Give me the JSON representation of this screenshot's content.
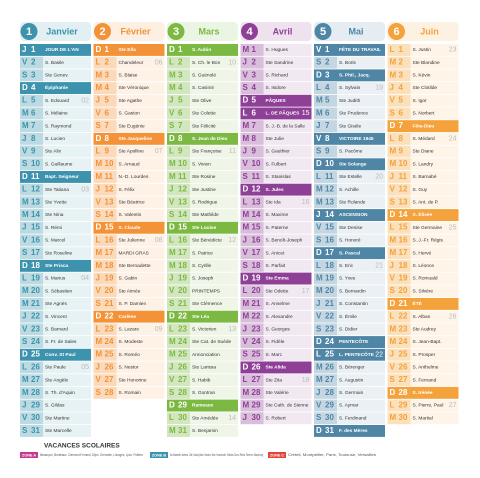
{
  "months": [
    {
      "number": 1,
      "name": "Janvier",
      "color": "#3d93ad",
      "days": [
        {
          "d": "J",
          "n": 1,
          "s": "JOUR DE L'AN",
          "h": true
        },
        {
          "d": "V",
          "n": 2,
          "s": "S. Basile"
        },
        {
          "d": "S",
          "n": 3,
          "s": "Ste Genev."
        },
        {
          "d": "D",
          "n": 4,
          "s": "Épiphanie",
          "h": true
        },
        {
          "d": "L",
          "n": 5,
          "s": "S. Edouard",
          "w": "02"
        },
        {
          "d": "M",
          "n": 6,
          "s": "S. Mélaine"
        },
        {
          "d": "M",
          "n": 7,
          "s": "S. Raymond"
        },
        {
          "d": "J",
          "n": 8,
          "s": "S. Lucien"
        },
        {
          "d": "V",
          "n": 9,
          "s": "Ste Alix"
        },
        {
          "d": "S",
          "n": 10,
          "s": "S. Guillaume"
        },
        {
          "d": "D",
          "n": 11,
          "s": "Bapt. Seigneur",
          "h": true
        },
        {
          "d": "L",
          "n": 12,
          "s": "Ste Tatiana",
          "w": "03"
        },
        {
          "d": "M",
          "n": 13,
          "s": "Ste Yvette"
        },
        {
          "d": "M",
          "n": 14,
          "s": "Ste Nina"
        },
        {
          "d": "J",
          "n": 15,
          "s": "S. Rémi"
        },
        {
          "d": "V",
          "n": 16,
          "s": "S. Marcel"
        },
        {
          "d": "S",
          "n": 17,
          "s": "Ste Roseline"
        },
        {
          "d": "D",
          "n": 18,
          "s": "Ste Prisca",
          "h": true
        },
        {
          "d": "L",
          "n": 19,
          "s": "S. Marius",
          "w": "04"
        },
        {
          "d": "M",
          "n": 20,
          "s": "S. Sébastien"
        },
        {
          "d": "M",
          "n": 21,
          "s": "Ste Agnès"
        },
        {
          "d": "J",
          "n": 22,
          "s": "S. Vincent"
        },
        {
          "d": "V",
          "n": 23,
          "s": "S. Barnard"
        },
        {
          "d": "S",
          "n": 24,
          "s": "S. Fr. de Sales"
        },
        {
          "d": "D",
          "n": 25,
          "s": "Conv. St Paul",
          "h": true
        },
        {
          "d": "L",
          "n": 26,
          "s": "Ste Paule",
          "w": "05"
        },
        {
          "d": "M",
          "n": 27,
          "s": "Ste Angèle"
        },
        {
          "d": "M",
          "n": 28,
          "s": "S. Th. d'Aquin"
        },
        {
          "d": "J",
          "n": 29,
          "s": "S. Gildas"
        },
        {
          "d": "V",
          "n": 30,
          "s": "Ste Martine"
        },
        {
          "d": "S",
          "n": 31,
          "s": "Ste Marcelle"
        }
      ]
    },
    {
      "number": 2,
      "name": "Février",
      "color": "#f39237",
      "days": [
        {
          "d": "D",
          "n": 1,
          "s": "Ste Ella",
          "h": true
        },
        {
          "d": "L",
          "n": 2,
          "s": "Chandeleur",
          "w": "06"
        },
        {
          "d": "M",
          "n": 3,
          "s": "S. Blaise"
        },
        {
          "d": "M",
          "n": 4,
          "s": "Ste Véronique"
        },
        {
          "d": "J",
          "n": 5,
          "s": "Ste Agathe"
        },
        {
          "d": "V",
          "n": 6,
          "s": "S. Gaston"
        },
        {
          "d": "S",
          "n": 7,
          "s": "Ste Eugénie"
        },
        {
          "d": "D",
          "n": 8,
          "s": "Ste Jacqueline",
          "h": true
        },
        {
          "d": "L",
          "n": 9,
          "s": "Ste Apolline",
          "w": "07"
        },
        {
          "d": "M",
          "n": 10,
          "s": "S. Arnaud"
        },
        {
          "d": "M",
          "n": 11,
          "s": "N.-D. Lourdes"
        },
        {
          "d": "J",
          "n": 12,
          "s": "S. Félix"
        },
        {
          "d": "V",
          "n": 13,
          "s": "Ste Béatrice"
        },
        {
          "d": "S",
          "n": 14,
          "s": "S. Valentin"
        },
        {
          "d": "D",
          "n": 15,
          "s": "S. Claude",
          "h": true
        },
        {
          "d": "L",
          "n": 16,
          "s": "Ste Julienne",
          "w": "08"
        },
        {
          "d": "M",
          "n": 17,
          "s": "MARDI GRAS"
        },
        {
          "d": "M",
          "n": 18,
          "s": "Ste Bernadette"
        },
        {
          "d": "J",
          "n": 19,
          "s": "S. Gabin"
        },
        {
          "d": "V",
          "n": 20,
          "s": "Ste Aimée"
        },
        {
          "d": "S",
          "n": 21,
          "s": "S. P. Damien"
        },
        {
          "d": "D",
          "n": 22,
          "s": "Carême",
          "h": true
        },
        {
          "d": "L",
          "n": 23,
          "s": "S. Lazare",
          "w": "09"
        },
        {
          "d": "M",
          "n": 24,
          "s": "S. Modeste"
        },
        {
          "d": "M",
          "n": 25,
          "s": "S. Roméo"
        },
        {
          "d": "J",
          "n": 26,
          "s": "S. Nestor"
        },
        {
          "d": "V",
          "n": 27,
          "s": "Ste Honorine"
        },
        {
          "d": "S",
          "n": 28,
          "s": "S. Romain"
        }
      ]
    },
    {
      "number": 3,
      "name": "Mars",
      "color": "#7cb942",
      "days": [
        {
          "d": "D",
          "n": 1,
          "s": "S. Aubin",
          "h": true
        },
        {
          "d": "L",
          "n": 2,
          "s": "S. Ch. le Bon",
          "w": "10"
        },
        {
          "d": "M",
          "n": 3,
          "s": "S. Guénolé"
        },
        {
          "d": "M",
          "n": 4,
          "s": "S. Casimir"
        },
        {
          "d": "J",
          "n": 5,
          "s": "Ste Olive"
        },
        {
          "d": "V",
          "n": 6,
          "s": "Ste Colette"
        },
        {
          "d": "S",
          "n": 7,
          "s": "Ste Félicité"
        },
        {
          "d": "D",
          "n": 8,
          "s": "S. Jean de Dieu",
          "h": true
        },
        {
          "d": "L",
          "n": 9,
          "s": "Ste Françoise",
          "w": "11"
        },
        {
          "d": "M",
          "n": 10,
          "s": "S. Vivien"
        },
        {
          "d": "M",
          "n": 11,
          "s": "Ste Rosine"
        },
        {
          "d": "J",
          "n": 12,
          "s": "Ste Justine"
        },
        {
          "d": "V",
          "n": 13,
          "s": "S. Rodrigue"
        },
        {
          "d": "S",
          "n": 14,
          "s": "Ste Mathilde"
        },
        {
          "d": "D",
          "n": 15,
          "s": "Ste Louise",
          "h": true
        },
        {
          "d": "L",
          "n": 16,
          "s": "Ste Bénédicte",
          "w": "12"
        },
        {
          "d": "M",
          "n": 17,
          "s": "S. Patrice"
        },
        {
          "d": "M",
          "n": 18,
          "s": "S. Cyrille"
        },
        {
          "d": "J",
          "n": 19,
          "s": "S. Joseph"
        },
        {
          "d": "V",
          "n": 20,
          "s": "PRINTEMPS"
        },
        {
          "d": "S",
          "n": 21,
          "s": "Ste Clémence"
        },
        {
          "d": "D",
          "n": 22,
          "s": "Ste Léa",
          "h": true
        },
        {
          "d": "L",
          "n": 23,
          "s": "S. Victorien",
          "w": "13"
        },
        {
          "d": "M",
          "n": 24,
          "s": "Ste Cat. de Suède"
        },
        {
          "d": "M",
          "n": 25,
          "s": "Annonciation"
        },
        {
          "d": "J",
          "n": 26,
          "s": "Ste Larissa"
        },
        {
          "d": "V",
          "n": 27,
          "s": "S. Habib"
        },
        {
          "d": "S",
          "n": 28,
          "s": "S. Gontran"
        },
        {
          "d": "D",
          "n": 29,
          "s": "Rameaux",
          "h": true
        },
        {
          "d": "L",
          "n": 30,
          "s": "Ste Amédée",
          "w": "14"
        },
        {
          "d": "M",
          "n": 31,
          "s": "S. Benjamin"
        }
      ]
    },
    {
      "number": 4,
      "name": "Avril",
      "color": "#8e3f96",
      "days": [
        {
          "d": "M",
          "n": 1,
          "s": "S. Hugues"
        },
        {
          "d": "J",
          "n": 2,
          "s": "Ste Sandrine"
        },
        {
          "d": "V",
          "n": 3,
          "s": "S. Richard"
        },
        {
          "d": "S",
          "n": 4,
          "s": "S. Isidore"
        },
        {
          "d": "D",
          "n": 5,
          "s": "PÂQUES",
          "h": true
        },
        {
          "d": "L",
          "n": 6,
          "s": "L. DE PÂQUES",
          "h": true,
          "w": "15"
        },
        {
          "d": "M",
          "n": 7,
          "s": "S. J.-B. de la Salle"
        },
        {
          "d": "M",
          "n": 8,
          "s": "Ste Julie"
        },
        {
          "d": "J",
          "n": 9,
          "s": "S. Gauthier"
        },
        {
          "d": "V",
          "n": 10,
          "s": "S. Fulbert"
        },
        {
          "d": "S",
          "n": 11,
          "s": "S. Stanislas"
        },
        {
          "d": "D",
          "n": 12,
          "s": "S. Jules",
          "h": true
        },
        {
          "d": "L",
          "n": 13,
          "s": "Ste Ida",
          "w": "16"
        },
        {
          "d": "M",
          "n": 14,
          "s": "S. Maxime"
        },
        {
          "d": "M",
          "n": 15,
          "s": "S. Paterne"
        },
        {
          "d": "J",
          "n": 16,
          "s": "S. Benoît-Joseph"
        },
        {
          "d": "V",
          "n": 17,
          "s": "S. Anicet"
        },
        {
          "d": "S",
          "n": 18,
          "s": "S. Parfait"
        },
        {
          "d": "D",
          "n": 19,
          "s": "Ste Emma",
          "h": true
        },
        {
          "d": "L",
          "n": 20,
          "s": "Ste Odette",
          "w": "17"
        },
        {
          "d": "M",
          "n": 21,
          "s": "S. Anselme"
        },
        {
          "d": "M",
          "n": 22,
          "s": "S. Alexandre"
        },
        {
          "d": "J",
          "n": 23,
          "s": "S. Georges"
        },
        {
          "d": "V",
          "n": 24,
          "s": "S. Fidèle"
        },
        {
          "d": "S",
          "n": 25,
          "s": "S. Marc"
        },
        {
          "d": "D",
          "n": 26,
          "s": "Ste Alida",
          "h": true
        },
        {
          "d": "L",
          "n": 27,
          "s": "Ste Zita",
          "w": "18"
        },
        {
          "d": "M",
          "n": 28,
          "s": "Ste Valérie"
        },
        {
          "d": "M",
          "n": 29,
          "s": "Ste Cath. de Sienne"
        },
        {
          "d": "J",
          "n": 30,
          "s": "S. Robert"
        }
      ]
    },
    {
      "number": 5,
      "name": "Mai",
      "color": "#4f86a6",
      "days": [
        {
          "d": "V",
          "n": 1,
          "s": "FÊTE DU TRAVAIL",
          "h": true
        },
        {
          "d": "S",
          "n": 2,
          "s": "S. Boris"
        },
        {
          "d": "D",
          "n": 3,
          "s": "S. Phil., Jacq.",
          "h": true
        },
        {
          "d": "L",
          "n": 4,
          "s": "S. Sylvain",
          "w": "19"
        },
        {
          "d": "M",
          "n": 5,
          "s": "Ste Judith"
        },
        {
          "d": "M",
          "n": 6,
          "s": "Ste Prudence"
        },
        {
          "d": "J",
          "n": 7,
          "s": "Ste Gisèle"
        },
        {
          "d": "V",
          "n": 8,
          "s": "VICTOIRE 1945",
          "h": true
        },
        {
          "d": "S",
          "n": 9,
          "s": "S. Pacôme"
        },
        {
          "d": "D",
          "n": 10,
          "s": "Ste Solange",
          "h": true
        },
        {
          "d": "L",
          "n": 11,
          "s": "Ste Estelle",
          "w": "20"
        },
        {
          "d": "M",
          "n": 12,
          "s": "S. Achille"
        },
        {
          "d": "M",
          "n": 13,
          "s": "Ste Rolande"
        },
        {
          "d": "J",
          "n": 14,
          "s": "ASCENSION",
          "h": true
        },
        {
          "d": "V",
          "n": 15,
          "s": "Ste Denise"
        },
        {
          "d": "S",
          "n": 16,
          "s": "S. Honoré"
        },
        {
          "d": "D",
          "n": 17,
          "s": "S. Pascal",
          "h": true
        },
        {
          "d": "L",
          "n": 18,
          "s": "S. Eric",
          "w": "21"
        },
        {
          "d": "M",
          "n": 19,
          "s": "S. Yves"
        },
        {
          "d": "M",
          "n": 20,
          "s": "S. Bernardin"
        },
        {
          "d": "J",
          "n": 21,
          "s": "S. Constantin"
        },
        {
          "d": "V",
          "n": 22,
          "s": "S. Émile"
        },
        {
          "d": "S",
          "n": 23,
          "s": "S. Didier"
        },
        {
          "d": "D",
          "n": 24,
          "s": "PENTECÔTE",
          "h": true
        },
        {
          "d": "L",
          "n": 25,
          "s": "L. PENTECÔTE",
          "h": true,
          "w": "22"
        },
        {
          "d": "M",
          "n": 26,
          "s": "S. Bérenger"
        },
        {
          "d": "M",
          "n": 27,
          "s": "S. Augustin"
        },
        {
          "d": "J",
          "n": 28,
          "s": "S. Germain"
        },
        {
          "d": "V",
          "n": 29,
          "s": "S. Aymar"
        },
        {
          "d": "S",
          "n": 30,
          "s": "S. Ferdinand"
        },
        {
          "d": "D",
          "n": 31,
          "s": "F. des Mères",
          "h": true
        }
      ]
    },
    {
      "number": 6,
      "name": "Juin",
      "color": "#f4a23c",
      "days": [
        {
          "d": "L",
          "n": 1,
          "s": "S. Justin",
          "w": "23"
        },
        {
          "d": "M",
          "n": 2,
          "s": "Ste Blandine"
        },
        {
          "d": "M",
          "n": 3,
          "s": "S. Kévin"
        },
        {
          "d": "J",
          "n": 4,
          "s": "Ste Clotilde"
        },
        {
          "d": "V",
          "n": 5,
          "s": "S. Igor"
        },
        {
          "d": "S",
          "n": 6,
          "s": "S. Norbert"
        },
        {
          "d": "D",
          "n": 7,
          "s": "Fête-Dieu",
          "h": true
        },
        {
          "d": "L",
          "n": 8,
          "s": "S. Médard",
          "w": "24"
        },
        {
          "d": "M",
          "n": 9,
          "s": "Ste Diane"
        },
        {
          "d": "M",
          "n": 10,
          "s": "S. Landry"
        },
        {
          "d": "J",
          "n": 11,
          "s": "S. Barnabé"
        },
        {
          "d": "V",
          "n": 12,
          "s": "S. Guy"
        },
        {
          "d": "S",
          "n": 13,
          "s": "S. Ant. de P."
        },
        {
          "d": "D",
          "n": 14,
          "s": "S. Élisée",
          "h": true
        },
        {
          "d": "L",
          "n": 15,
          "s": "Ste Germaine",
          "w": "25"
        },
        {
          "d": "M",
          "n": 16,
          "s": "S. J.-Fr. Régis"
        },
        {
          "d": "M",
          "n": 17,
          "s": "S. Hervé"
        },
        {
          "d": "J",
          "n": 18,
          "s": "S. Léonce"
        },
        {
          "d": "V",
          "n": 19,
          "s": "S. Romuald"
        },
        {
          "d": "S",
          "n": 20,
          "s": "S. Silvère"
        },
        {
          "d": "D",
          "n": 21,
          "s": "ÉTÉ",
          "h": true
        },
        {
          "d": "L",
          "n": 22,
          "s": "S. Alban",
          "w": "26"
        },
        {
          "d": "M",
          "n": 23,
          "s": "Ste Audrey"
        },
        {
          "d": "M",
          "n": 24,
          "s": "S. Jean-Bapt."
        },
        {
          "d": "J",
          "n": 25,
          "s": "S. Prosper"
        },
        {
          "d": "V",
          "n": 26,
          "s": "S. Anthelme"
        },
        {
          "d": "S",
          "n": 27,
          "s": "S. Fernand"
        },
        {
          "d": "D",
          "n": 28,
          "s": "S. Irénée",
          "h": true
        },
        {
          "d": "L",
          "n": 29,
          "s": "S. Pierre, Paul",
          "w": "27"
        },
        {
          "d": "M",
          "n": 30,
          "s": "S. Martial"
        }
      ]
    }
  ],
  "legend": {
    "title": "VACANCES SCOLAIRES",
    "zones": [
      {
        "label": "ZONE A",
        "color": "#c43b8c",
        "text": "Besançon, Bordeaux, Clermont-Ferrand, Dijon, Grenoble, Limoges, Lyon, Poitiers"
      },
      {
        "label": "ZONE B",
        "color": "#3d93ad",
        "text": "Aix-Marseille, Amiens, Lille, Nancy-Metz, Nantes, Nice, Normandie, Orléans-Tours, Reims, Rennes, Strasbourg"
      },
      {
        "label": "ZONE C",
        "color": "#e2453c",
        "text": "Créteil, Montpellier, Paris, Toulouse, Versailles"
      }
    ]
  }
}
